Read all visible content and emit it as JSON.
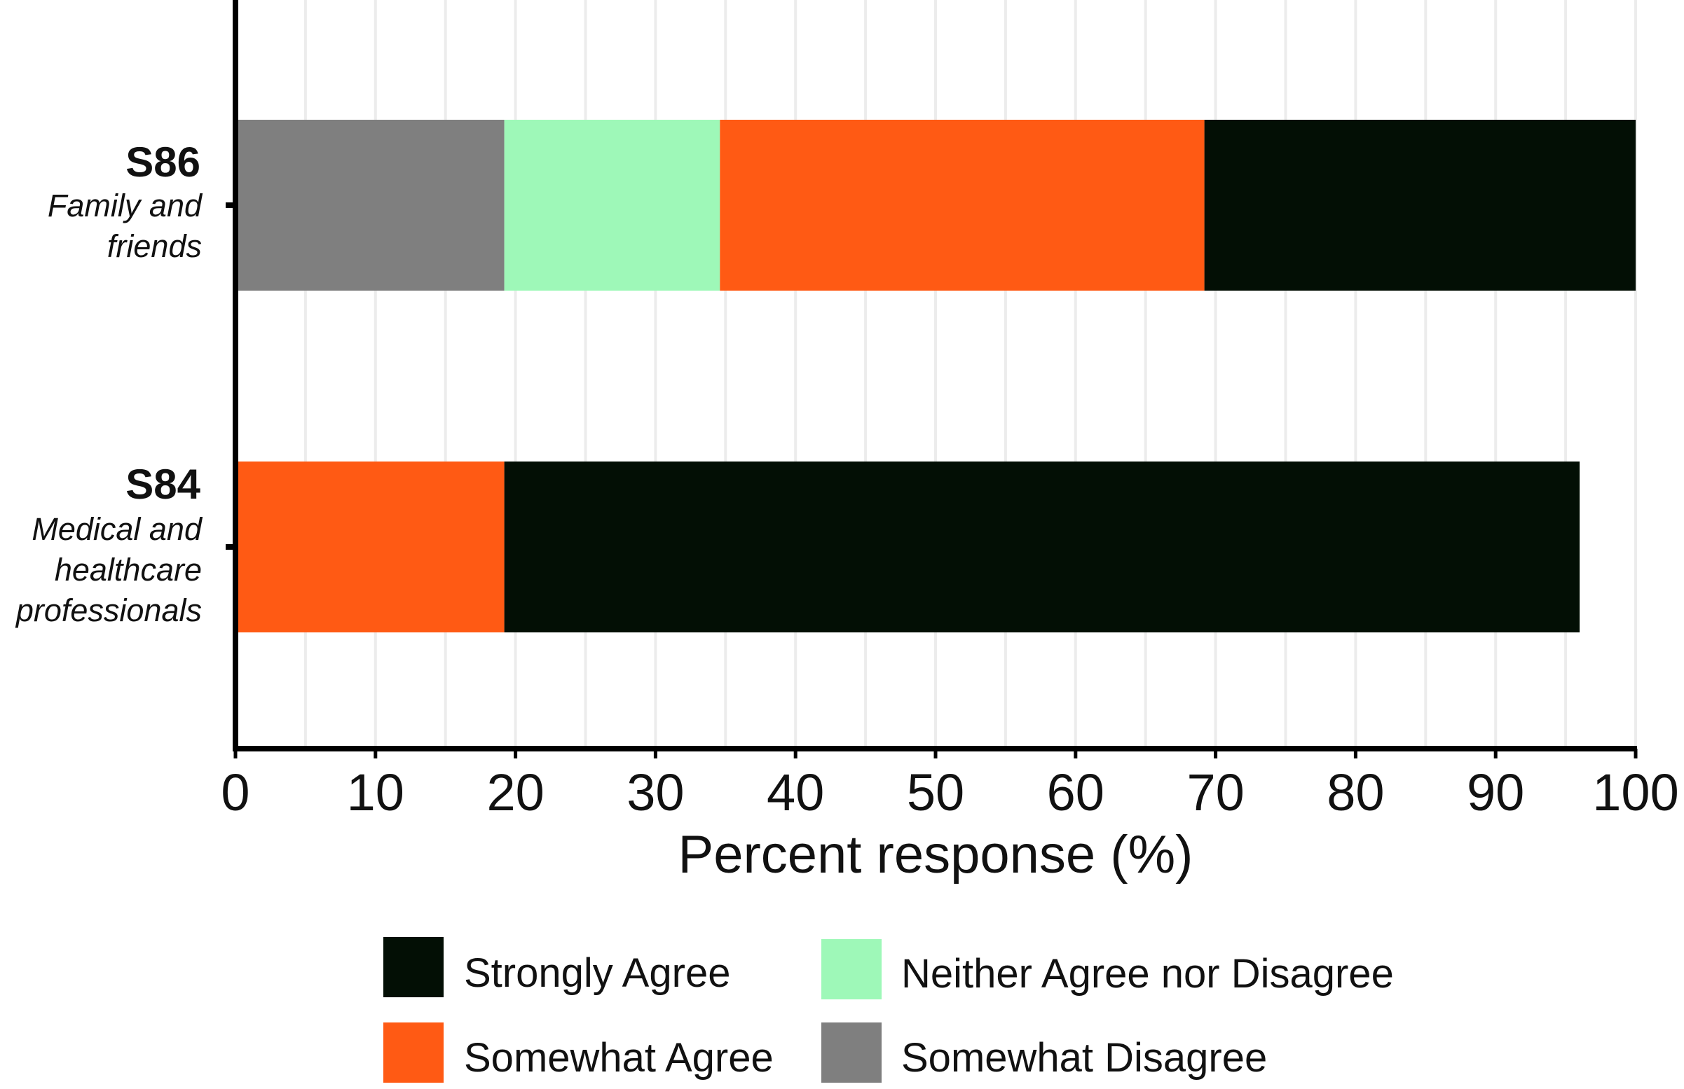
{
  "chart_data": {
    "type": "bar",
    "orientation": "horizontal",
    "stacked": true,
    "categories": [
      {
        "code": "S86",
        "description": [
          "Family and",
          "friends"
        ]
      },
      {
        "code": "S84",
        "description": [
          "Medical and",
          "healthcare",
          "professionals"
        ]
      }
    ],
    "series": [
      {
        "name": "Somewhat Disagree",
        "color": "#7f7f7f",
        "values": [
          19.2,
          0
        ]
      },
      {
        "name": "Neither Agree nor Disagree",
        "color": "#9ef8b8",
        "values": [
          15.4,
          0
        ]
      },
      {
        "name": "Somewhat Agree",
        "color": "#ff5a14",
        "values": [
          34.6,
          19.2
        ]
      },
      {
        "name": "Strongly Agree",
        "color": "#030f05",
        "values": [
          30.8,
          76.8
        ]
      }
    ],
    "xlabel": "Percent response (%)",
    "xlim": [
      0,
      100
    ],
    "xticks": [
      0,
      10,
      20,
      30,
      40,
      50,
      60,
      70,
      80,
      90,
      100
    ],
    "grid": "vertical",
    "legend": {
      "position": "bottom",
      "order": [
        "Strongly Agree",
        "Neither Agree nor Disagree",
        "Somewhat Agree",
        "Somewhat Disagree"
      ]
    }
  }
}
